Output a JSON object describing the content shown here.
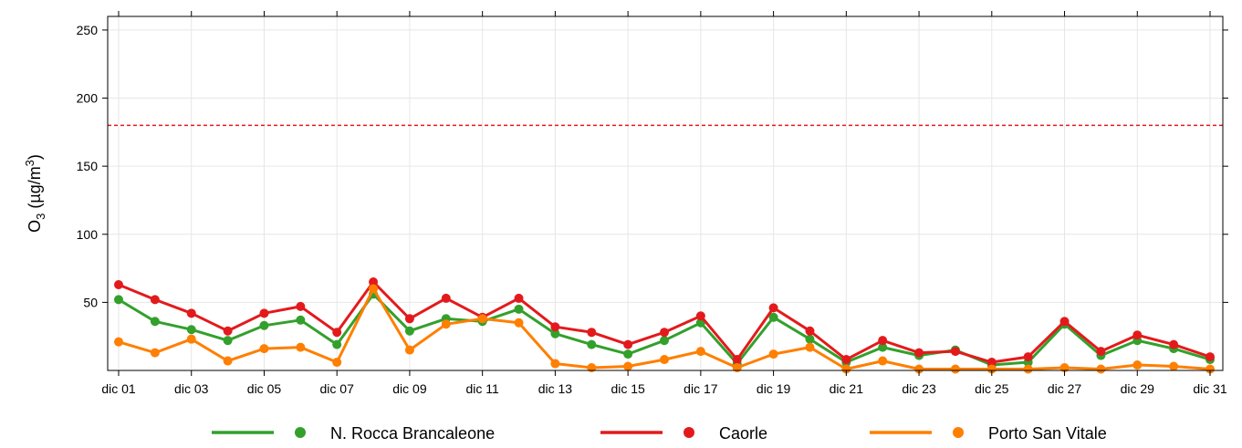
{
  "chart_data": {
    "type": "line",
    "title": "",
    "xlabel": "",
    "ylabel": "O",
    "ylabel_sub": "3",
    "ylabel_units_pre": " (µg/m",
    "ylabel_units_sup": "3",
    "ylabel_units_post": ")",
    "ylim": [
      0,
      260
    ],
    "yticks": [
      50,
      100,
      150,
      200,
      250
    ],
    "x": [
      "dic 01",
      "dic 02",
      "dic 03",
      "dic 04",
      "dic 05",
      "dic 06",
      "dic 07",
      "dic 08",
      "dic 09",
      "dic 10",
      "dic 11",
      "dic 12",
      "dic 13",
      "dic 14",
      "dic 15",
      "dic 16",
      "dic 17",
      "dic 18",
      "dic 19",
      "dic 20",
      "dic 21",
      "dic 22",
      "dic 23",
      "dic 24",
      "dic 25",
      "dic 26",
      "dic 27",
      "dic 28",
      "dic 29",
      "dic 30",
      "dic 31"
    ],
    "xtick_labels": [
      "dic 01",
      "dic 03",
      "dic 05",
      "dic 07",
      "dic 09",
      "dic 11",
      "dic 13",
      "dic 15",
      "dic 17",
      "dic 19",
      "dic 21",
      "dic 23",
      "dic 25",
      "dic 27",
      "dic 29",
      "dic 31"
    ],
    "threshold": {
      "value": 180,
      "color": "#e41a1c",
      "style": "dashed"
    },
    "grid": true,
    "legend_position": "bottom",
    "series": [
      {
        "name": "N. Rocca Brancaleone",
        "color": "#33a02c",
        "values": [
          52,
          36,
          30,
          22,
          33,
          37,
          19,
          56,
          29,
          38,
          36,
          45,
          27,
          19,
          12,
          22,
          35,
          5,
          39,
          23,
          6,
          17,
          11,
          15,
          4,
          6,
          34,
          11,
          22,
          16,
          8
        ]
      },
      {
        "name": "Caorle",
        "color": "#e31a1c",
        "values": [
          63,
          52,
          42,
          29,
          42,
          47,
          28,
          65,
          38,
          53,
          39,
          53,
          32,
          28,
          19,
          28,
          40,
          8,
          46,
          29,
          8,
          22,
          13,
          14,
          6,
          10,
          36,
          14,
          26,
          19,
          10
        ]
      },
      {
        "name": "Porto San Vitale",
        "color": "#ff7f00",
        "values": [
          21,
          13,
          23,
          7,
          16,
          17,
          6,
          60,
          15,
          34,
          38,
          35,
          5,
          2,
          3,
          8,
          14,
          2,
          12,
          17,
          1,
          7,
          1,
          1,
          1,
          1,
          2,
          1,
          4,
          3,
          1
        ]
      }
    ]
  }
}
